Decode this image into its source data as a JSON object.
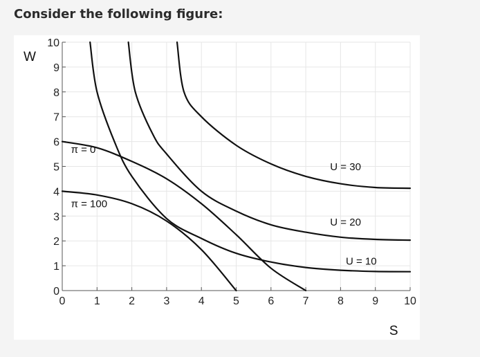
{
  "page": {
    "question_text": "Consider the following figure:"
  },
  "chart_data": {
    "type": "line",
    "xlabel": "S",
    "ylabel": "W",
    "xlim": [
      0,
      10
    ],
    "ylim": [
      0,
      10
    ],
    "x_ticks": [
      "0",
      "1",
      "2",
      "3",
      "4",
      "5",
      "6",
      "7",
      "8",
      "9",
      "10"
    ],
    "y_ticks": [
      "0",
      "1",
      "2",
      "3",
      "4",
      "5",
      "6",
      "7",
      "8",
      "9",
      "10"
    ],
    "grid": true,
    "series": [
      {
        "name": "U = 10",
        "kind": "indifference",
        "points": [
          [
            0.8,
            10.0
          ],
          [
            1.0,
            8.0
          ],
          [
            1.5,
            6.0
          ],
          [
            2.0,
            4.6
          ],
          [
            3.0,
            2.9
          ],
          [
            4.0,
            2.1
          ],
          [
            5.0,
            1.5
          ],
          [
            6.0,
            1.15
          ],
          [
            7.0,
            0.93
          ],
          [
            8.0,
            0.82
          ],
          [
            9.0,
            0.77
          ],
          [
            10.0,
            0.76
          ]
        ]
      },
      {
        "name": "U = 20",
        "kind": "indifference",
        "points": [
          [
            1.9,
            10.0
          ],
          [
            2.1,
            8.0
          ],
          [
            2.6,
            6.3
          ],
          [
            3.0,
            5.5
          ],
          [
            4.0,
            4.0
          ],
          [
            5.0,
            3.2
          ],
          [
            6.0,
            2.65
          ],
          [
            7.0,
            2.35
          ],
          [
            8.0,
            2.15
          ],
          [
            9.0,
            2.06
          ],
          [
            10.0,
            2.03
          ]
        ]
      },
      {
        "name": "U = 30",
        "kind": "indifference",
        "points": [
          [
            3.3,
            10.0
          ],
          [
            3.5,
            8.0
          ],
          [
            4.0,
            7.0
          ],
          [
            5.0,
            5.85
          ],
          [
            6.0,
            5.1
          ],
          [
            7.0,
            4.6
          ],
          [
            8.0,
            4.3
          ],
          [
            9.0,
            4.15
          ],
          [
            10.0,
            4.12
          ]
        ]
      },
      {
        "name": "π = 0",
        "kind": "isoprofit",
        "points": [
          [
            0.0,
            6.0
          ],
          [
            1.0,
            5.75
          ],
          [
            2.0,
            5.2
          ],
          [
            3.0,
            4.5
          ],
          [
            4.0,
            3.5
          ],
          [
            5.0,
            2.25
          ],
          [
            6.0,
            0.9
          ],
          [
            7.0,
            0.0
          ]
        ]
      },
      {
        "name": "π = 100",
        "kind": "isoprofit",
        "points": [
          [
            0.0,
            4.0
          ],
          [
            1.0,
            3.85
          ],
          [
            2.0,
            3.5
          ],
          [
            3.0,
            2.8
          ],
          [
            4.0,
            1.65
          ],
          [
            5.0,
            0.0
          ]
        ]
      }
    ],
    "annotations": [
      {
        "text": "π = 0",
        "x": 0.25,
        "y": 5.55
      },
      {
        "text": "π = 100",
        "x": 0.25,
        "y": 3.35
      },
      {
        "text": "U = 30",
        "x": 7.7,
        "y": 4.85
      },
      {
        "text": "U = 20",
        "x": 7.7,
        "y": 2.62
      },
      {
        "text": "U = 10",
        "x": 8.15,
        "y": 1.05
      }
    ]
  }
}
